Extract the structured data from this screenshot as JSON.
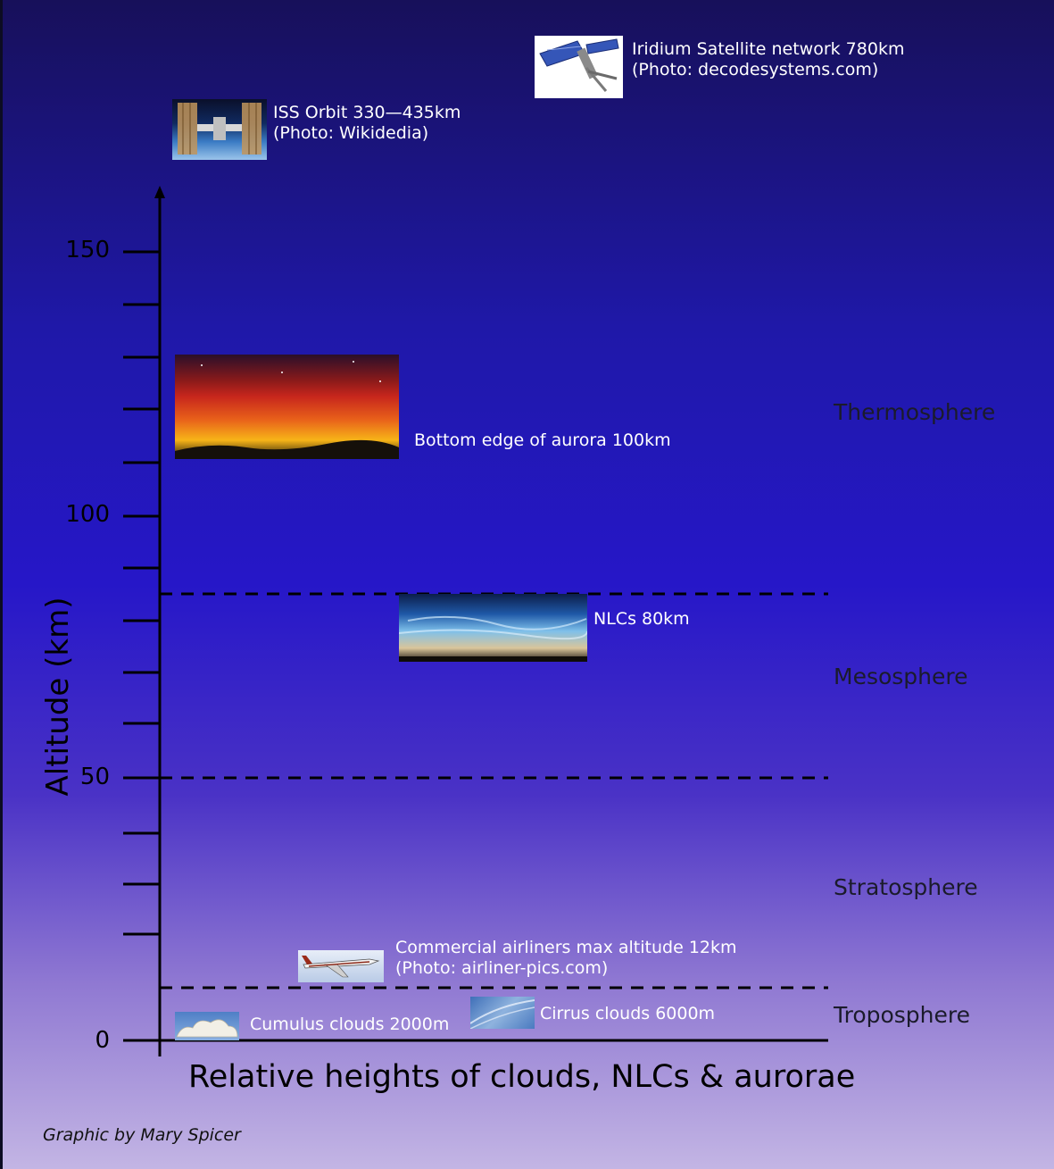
{
  "diagram": {
    "y_axis": {
      "label": "Altitude (km)",
      "ticks": [
        {
          "value": 0,
          "label": "0"
        },
        {
          "value": 50,
          "label": "50"
        },
        {
          "value": 100,
          "label": "100"
        },
        {
          "value": 150,
          "label": "150"
        }
      ]
    },
    "layers": [
      {
        "name": "Thermosphere"
      },
      {
        "name": "Mesosphere"
      },
      {
        "name": "Stratosphere"
      },
      {
        "name": "Troposphere"
      }
    ],
    "items": {
      "iridium": {
        "line1": "Iridium Satellite network 780km",
        "line2": "(Photo: decodesystems.com)"
      },
      "iss": {
        "line1": "ISS Orbit  330—435km",
        "line2": "(Photo: Wikidedia)"
      },
      "aurora": {
        "line1": "Bottom edge of aurora 100km"
      },
      "nlc": {
        "line1": "NLCs 80km"
      },
      "airliner": {
        "line1": "Commercial airliners  max altitude 12km",
        "line2": "(Photo: airliner-pics.com)"
      },
      "cirrus": {
        "line1": "Cirrus clouds 6000m"
      },
      "cumulus": {
        "line1": "Cumulus clouds 2000m"
      }
    },
    "title": "Relative heights of clouds, NLCs & aurorae",
    "credit": "Graphic by Mary Spicer"
  }
}
